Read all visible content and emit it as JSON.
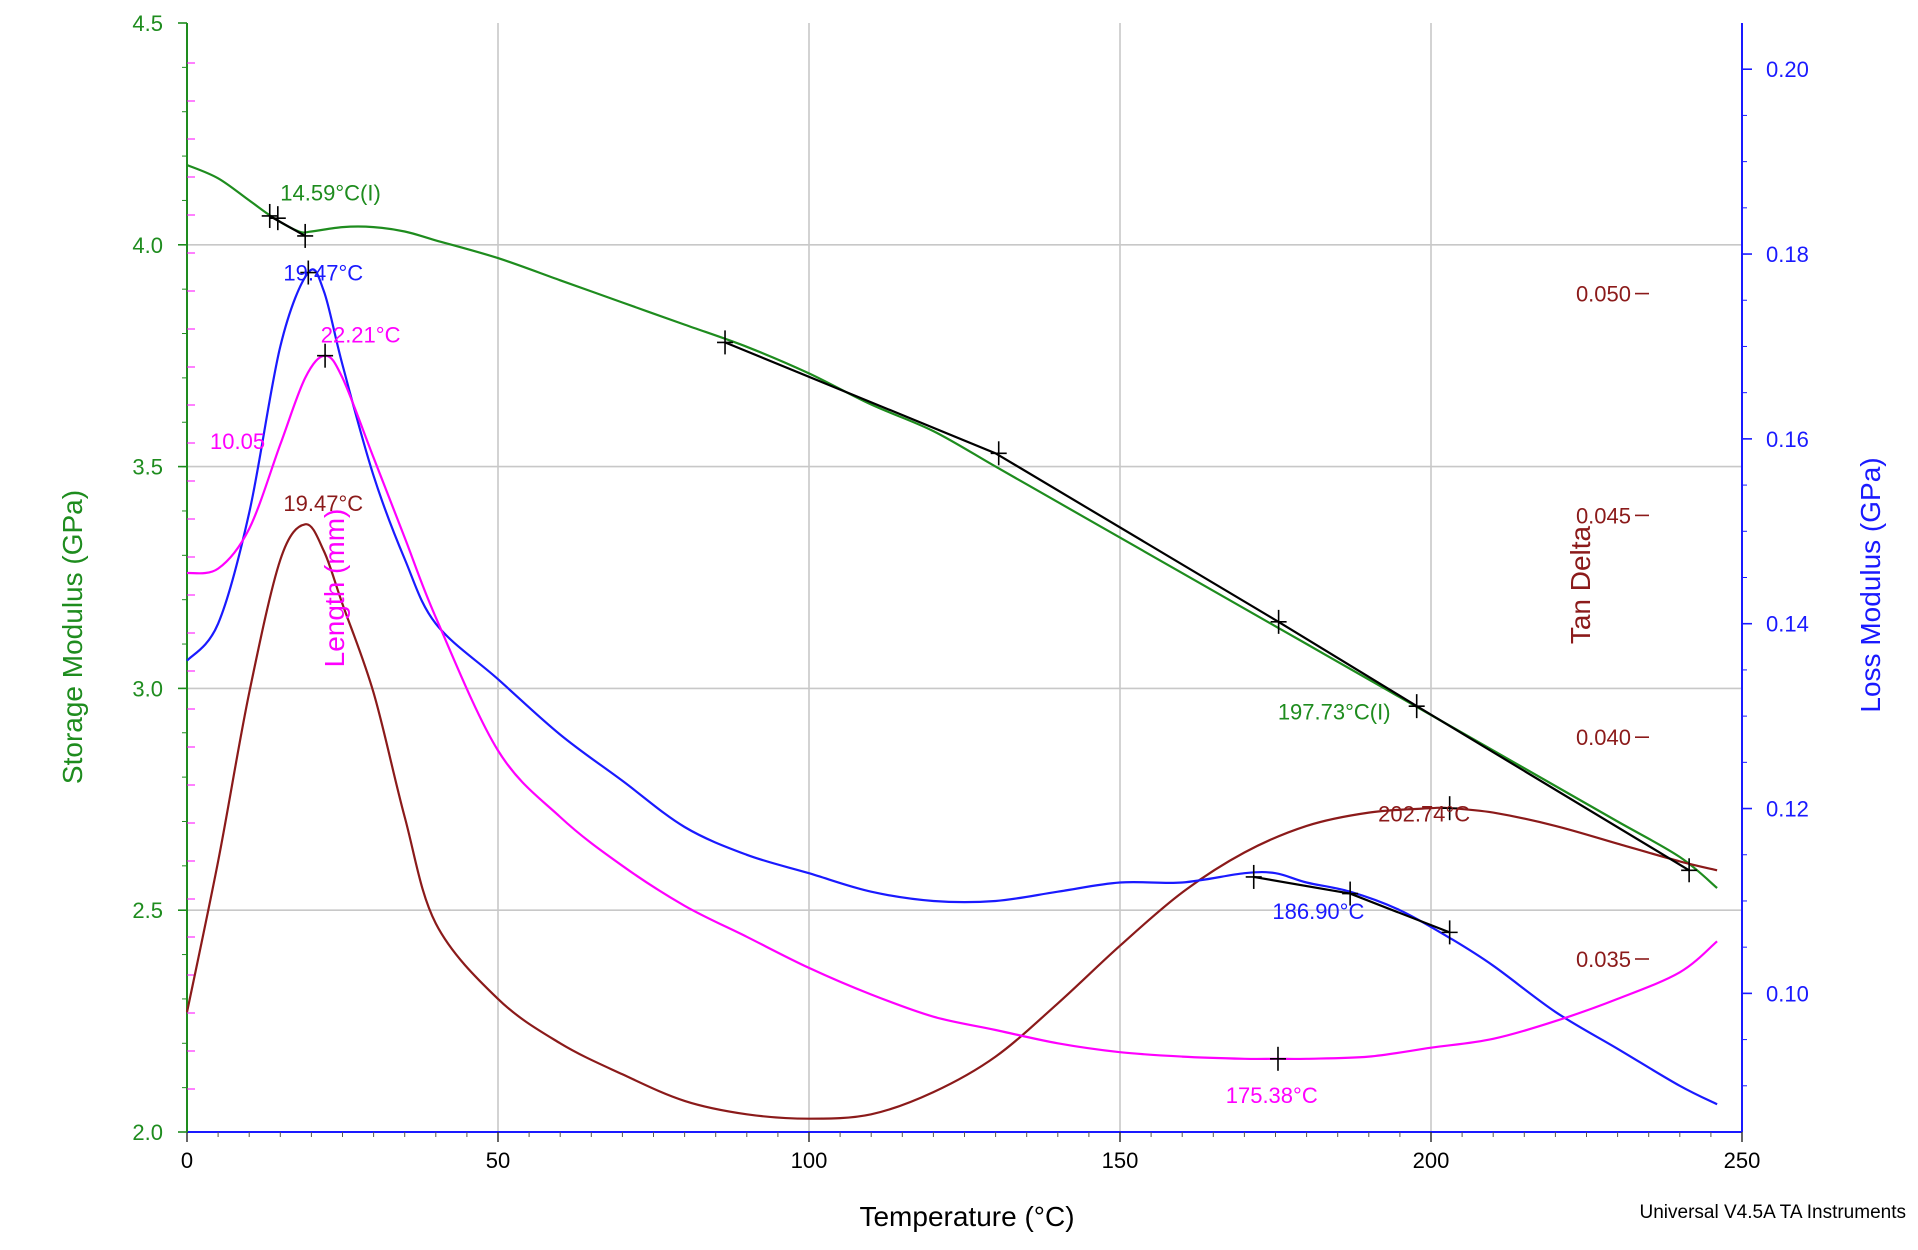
{
  "chart_data": {
    "type": "line",
    "title": "",
    "footer": "Universal V4.5A TA Instruments",
    "xlabel": "Temperature (°C)",
    "xlim": [
      0,
      250
    ],
    "xticks": [
      0,
      50,
      100,
      150,
      200,
      250
    ],
    "xtick_labels": [
      "0",
      "50",
      "100",
      "150",
      "200",
      "250"
    ],
    "grid": true,
    "axes": {
      "storage": {
        "label": "Storage Modulus (GPa)",
        "color": "#1e8c1e",
        "side": "left",
        "range": [
          2.0,
          4.5
        ],
        "ticks": [
          2.0,
          2.5,
          3.0,
          3.5,
          4.0,
          4.5
        ],
        "tick_labels": [
          "2.0",
          "2.5",
          "3.0",
          "3.5",
          "4.0",
          "4.5"
        ]
      },
      "tan": {
        "label": "Tan Delta",
        "color": "#8b1a1a",
        "side": "right-inner",
        "range": [
          0.0311,
          0.0561
        ],
        "ticks": [
          0.035,
          0.04,
          0.045,
          0.05
        ],
        "tick_labels": [
          "0.035",
          "0.040",
          "0.045",
          "0.050"
        ]
      },
      "loss": {
        "label": "Loss Modulus (GPa)",
        "color": "#1a1aff",
        "side": "right",
        "range": [
          0.085,
          0.205
        ],
        "ticks": [
          0.1,
          0.12,
          0.14,
          0.16,
          0.18,
          0.2
        ],
        "tick_labels": [
          "0.10",
          "0.12",
          "0.14",
          "0.16",
          "0.18",
          "0.20"
        ]
      },
      "length": {
        "label": "Length (mm)",
        "color": "#ff00ff",
        "side": "inner-left",
        "tick_labels": [
          "10.05"
        ]
      }
    },
    "series": [
      {
        "name": "Storage Modulus",
        "axis": "storage",
        "color": "#1e8c1e",
        "x": [
          0,
          5,
          10,
          14,
          18,
          20,
          25,
          30,
          35,
          40,
          50,
          60,
          70,
          80,
          90,
          100,
          110,
          120,
          130,
          140,
          150,
          160,
          170,
          180,
          190,
          200,
          210,
          220,
          230,
          240,
          246
        ],
        "y": [
          4.18,
          4.15,
          4.1,
          4.06,
          4.03,
          4.03,
          4.04,
          4.04,
          4.03,
          4.01,
          3.97,
          3.92,
          3.87,
          3.82,
          3.77,
          3.71,
          3.64,
          3.58,
          3.5,
          3.42,
          3.34,
          3.26,
          3.18,
          3.1,
          3.02,
          2.94,
          2.86,
          2.78,
          2.7,
          2.62,
          2.55
        ]
      },
      {
        "name": "Tan Delta",
        "axis": "tan",
        "color": "#8b1a1a",
        "x": [
          0,
          5,
          10,
          15,
          19,
          22,
          25,
          30,
          35,
          40,
          50,
          60,
          70,
          80,
          90,
          100,
          110,
          120,
          130,
          140,
          150,
          160,
          170,
          180,
          190,
          200,
          203,
          210,
          220,
          230,
          240,
          246
        ],
        "y": [
          0.0338,
          0.0372,
          0.041,
          0.044,
          0.0448,
          0.0442,
          0.043,
          0.041,
          0.0382,
          0.0358,
          0.0341,
          0.0331,
          0.0324,
          0.0318,
          0.0315,
          0.0314,
          0.0315,
          0.032,
          0.0328,
          0.034,
          0.0353,
          0.0365,
          0.0374,
          0.038,
          0.0383,
          0.0384,
          0.0384,
          0.0383,
          0.038,
          0.0376,
          0.0372,
          0.037
        ]
      },
      {
        "name": "Loss Modulus",
        "axis": "loss",
        "color": "#1a1aff",
        "x": [
          0,
          5,
          10,
          15,
          19.5,
          22,
          25,
          30,
          35,
          40,
          50,
          60,
          70,
          80,
          90,
          100,
          110,
          120,
          130,
          140,
          150,
          160,
          170,
          175,
          180,
          187,
          195,
          203,
          210,
          220,
          230,
          240,
          246
        ],
        "y": [
          0.136,
          0.14,
          0.152,
          0.17,
          0.178,
          0.176,
          0.168,
          0.156,
          0.147,
          0.14,
          0.134,
          0.128,
          0.123,
          0.118,
          0.115,
          0.113,
          0.111,
          0.11,
          0.11,
          0.111,
          0.112,
          0.112,
          0.113,
          0.113,
          0.112,
          0.111,
          0.109,
          0.106,
          0.103,
          0.098,
          0.094,
          0.09,
          0.088
        ]
      },
      {
        "name": "Length",
        "axis": "storage",
        "color": "#ff00ff",
        "x": [
          0,
          5,
          10,
          15,
          19,
          22.2,
          25,
          30,
          35,
          40,
          50,
          60,
          70,
          80,
          90,
          100,
          110,
          120,
          130,
          140,
          150,
          160,
          170,
          175,
          180,
          190,
          200,
          210,
          220,
          230,
          240,
          246
        ],
        "y": [
          3.26,
          3.27,
          3.36,
          3.55,
          3.7,
          3.75,
          3.7,
          3.52,
          3.34,
          3.16,
          2.86,
          2.71,
          2.6,
          2.51,
          2.44,
          2.37,
          2.31,
          2.26,
          2.23,
          2.2,
          2.18,
          2.17,
          2.165,
          2.165,
          2.165,
          2.17,
          2.19,
          2.21,
          2.25,
          2.3,
          2.36,
          2.43
        ]
      },
      {
        "name": "Storage tangent lines",
        "axis": "storage",
        "color": "#000000",
        "segments": [
          {
            "x": [
              13.3,
              19
            ],
            "y": [
              4.065,
              4.02
            ]
          },
          {
            "x": [
              86.5,
              130,
              175.5,
              197.7,
              241.5
            ],
            "y": [
              3.78,
              3.53,
              3.15,
              2.96,
              2.59
            ]
          }
        ]
      },
      {
        "name": "Loss tangent lines",
        "axis": "loss",
        "color": "#000000",
        "segments": [
          {
            "x": [
              171.5,
              187,
              203
            ],
            "y": [
              0.1126,
              0.1108,
              0.1066
            ]
          }
        ]
      }
    ],
    "markers": [
      {
        "axis": "storage",
        "x": 13.3,
        "y": 4.065
      },
      {
        "axis": "storage",
        "x": 14.6,
        "y": 4.06
      },
      {
        "axis": "storage",
        "x": 19.0,
        "y": 4.02
      },
      {
        "axis": "storage",
        "x": 86.5,
        "y": 3.78
      },
      {
        "axis": "storage",
        "x": 130.5,
        "y": 3.53
      },
      {
        "axis": "storage",
        "x": 175.5,
        "y": 3.15
      },
      {
        "axis": "storage",
        "x": 197.7,
        "y": 2.96
      },
      {
        "axis": "storage",
        "x": 241.5,
        "y": 2.59
      },
      {
        "axis": "loss",
        "x": 19.5,
        "y": 0.178
      },
      {
        "axis": "loss",
        "x": 171.5,
        "y": 0.1126
      },
      {
        "axis": "loss",
        "x": 187.0,
        "y": 0.1108
      },
      {
        "axis": "loss",
        "x": 203.0,
        "y": 0.1066
      },
      {
        "axis": "tan",
        "x": 203.0,
        "y": 0.0384
      },
      {
        "axis": "storage",
        "x": 22.2,
        "y": 3.75
      },
      {
        "axis": "storage",
        "x": 175.4,
        "y": 2.165
      }
    ],
    "annotations": [
      {
        "text": "14.59°C(I)",
        "axis": "storage",
        "x": 15,
        "y": 4.1,
        "anchor": "start",
        "color": "#1e8c1e"
      },
      {
        "text": "19.47°C",
        "axis": "storage",
        "x": 15.5,
        "y": 3.92,
        "anchor": "start",
        "color": "#1a1aff"
      },
      {
        "text": "22.21°C",
        "axis": "storage",
        "x": 21.5,
        "y": 3.78,
        "anchor": "start",
        "color": "#ff00ff"
      },
      {
        "text": "19.47°C",
        "axis": "storage",
        "x": 15.5,
        "y": 3.4,
        "anchor": "start",
        "color": "#8b1a1a"
      },
      {
        "text": "197.73°C(I)",
        "axis": "storage",
        "x": 193.5,
        "y": 2.93,
        "anchor": "end",
        "color": "#1e8c1e"
      },
      {
        "text": "202.74°C",
        "axis": "storage",
        "x": 191.5,
        "y": 2.7,
        "anchor": "start",
        "color": "#8b1a1a"
      },
      {
        "text": "186.90°C",
        "axis": "storage",
        "x": 174.5,
        "y": 2.48,
        "anchor": "start",
        "color": "#1a1aff"
      },
      {
        "text": "175.38°C",
        "axis": "storage",
        "x": 167,
        "y": 2.065,
        "anchor": "start",
        "color": "#ff00ff"
      }
    ]
  }
}
